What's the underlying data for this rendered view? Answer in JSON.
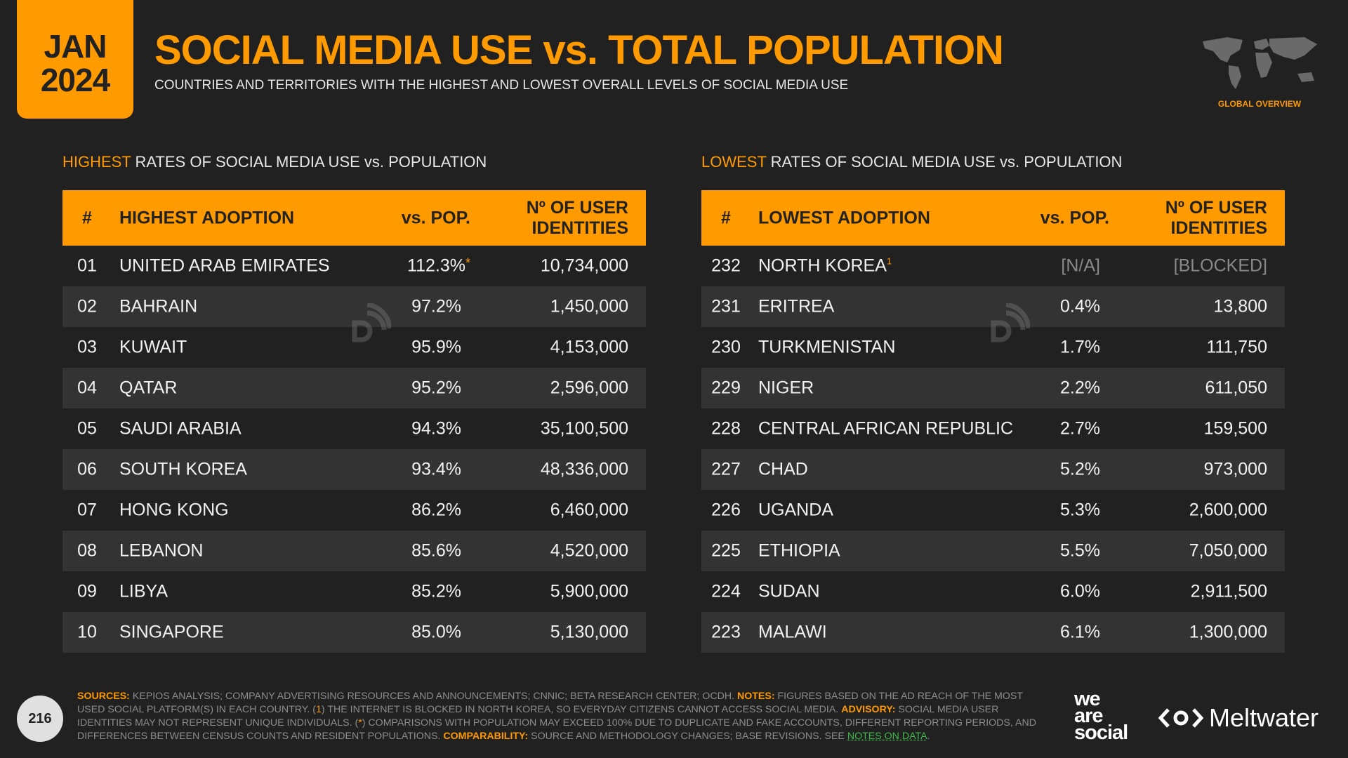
{
  "header": {
    "month": "JAN",
    "year": "2024",
    "title": "SOCIAL MEDIA USE vs. TOTAL POPULATION",
    "subtitle": "COUNTRIES AND TERRITORIES WITH THE HIGHEST AND LOWEST OVERALL LEVELS OF SOCIAL MEDIA USE",
    "section_tag": "GLOBAL OVERVIEW"
  },
  "highest": {
    "heading_hl": "HIGHEST",
    "heading_rest": " RATES OF SOCIAL MEDIA USE vs. POPULATION",
    "columns": [
      "#",
      "HIGHEST ADOPTION",
      "vs. POP.",
      "Nº OF USER",
      "IDENTITIES"
    ],
    "rows": [
      {
        "rank": "01",
        "name": "UNITED ARAB EMIRATES",
        "pop": "112.3%",
        "mark": "*",
        "users": "10,734,000"
      },
      {
        "rank": "02",
        "name": "BAHRAIN",
        "pop": "97.2%",
        "users": "1,450,000"
      },
      {
        "rank": "03",
        "name": "KUWAIT",
        "pop": "95.9%",
        "users": "4,153,000"
      },
      {
        "rank": "04",
        "name": "QATAR",
        "pop": "95.2%",
        "users": "2,596,000"
      },
      {
        "rank": "05",
        "name": "SAUDI ARABIA",
        "pop": "94.3%",
        "users": "35,100,500"
      },
      {
        "rank": "06",
        "name": "SOUTH KOREA",
        "pop": "93.4%",
        "users": "48,336,000"
      },
      {
        "rank": "07",
        "name": "HONG KONG",
        "pop": "86.2%",
        "users": "6,460,000"
      },
      {
        "rank": "08",
        "name": "LEBANON",
        "pop": "85.6%",
        "users": "4,520,000"
      },
      {
        "rank": "09",
        "name": "LIBYA",
        "pop": "85.2%",
        "users": "5,900,000"
      },
      {
        "rank": "10",
        "name": "SINGAPORE",
        "pop": "85.0%",
        "users": "5,130,000"
      }
    ]
  },
  "lowest": {
    "heading_hl": "LOWEST",
    "heading_rest": " RATES OF SOCIAL MEDIA USE vs. POPULATION",
    "columns": [
      "#",
      "LOWEST ADOPTION",
      "vs. POP.",
      "Nº OF USER",
      "IDENTITIES"
    ],
    "rows": [
      {
        "rank": "232",
        "name": "NORTH KOREA",
        "mark": "1",
        "pop": "[N/A]",
        "users": "[BLOCKED]"
      },
      {
        "rank": "231",
        "name": "ERITREA",
        "pop": "0.4%",
        "users": "13,800"
      },
      {
        "rank": "230",
        "name": "TURKMENISTAN",
        "pop": "1.7%",
        "users": "111,750"
      },
      {
        "rank": "229",
        "name": "NIGER",
        "pop": "2.2%",
        "users": "611,050"
      },
      {
        "rank": "228",
        "name": "CENTRAL AFRICAN REPUBLIC",
        "pop": "2.7%",
        "users": "159,500"
      },
      {
        "rank": "227",
        "name": "CHAD",
        "pop": "5.2%",
        "users": "973,000"
      },
      {
        "rank": "226",
        "name": "UGANDA",
        "pop": "5.3%",
        "users": "2,600,000"
      },
      {
        "rank": "225",
        "name": "ETHIOPIA",
        "pop": "5.5%",
        "users": "7,050,000"
      },
      {
        "rank": "224",
        "name": "SUDAN",
        "pop": "6.0%",
        "users": "2,911,500"
      },
      {
        "rank": "223",
        "name": "MALAWI",
        "pop": "6.1%",
        "users": "1,300,000"
      }
    ]
  },
  "footer": {
    "page": "216",
    "sources_label": "SOURCES:",
    "sources": " KEPIOS ANALYSIS; COMPANY ADVERTISING RESOURCES AND ANNOUNCEMENTS; CNNIC; BETA RESEARCH CENTER; OCDH. ",
    "notes_label": "NOTES:",
    "notes_a": " FIGURES BASED ON THE AD REACH OF THE MOST USED SOCIAL PLATFORM(S) IN EACH COUNTRY. (",
    "n1": "1",
    "notes_b": ") THE INTERNET IS BLOCKED IN NORTH KOREA, SO EVERYDAY CITIZENS CANNOT ACCESS SOCIAL MEDIA. ",
    "advisory_label": "ADVISORY:",
    "advisory_a": " SOCIAL MEDIA USER IDENTITIES MAY NOT REPRESENT UNIQUE INDIVIDUALS. (",
    "n2": "*",
    "advisory_b": ") COMPARISONS WITH POPULATION MAY EXCEED 100% DUE TO DUPLICATE AND FAKE ACCOUNTS, DIFFERENT REPORTING PERIODS, AND DIFFERENCES BETWEEN CENSUS COUNTS AND RESIDENT POPULATIONS. ",
    "comparability_label": "COMPARABILITY:",
    "comparability": " SOURCE AND METHODOLOGY CHANGES; BASE REVISIONS. SEE ",
    "link": "NOTES ON DATA",
    "end": "."
  },
  "logos": {
    "was1": "we",
    "was2": "are",
    "was3": "social",
    "meltwater": "Meltwater"
  },
  "colors": {
    "accent": "#FF9A00",
    "background": "#212121",
    "row_alt": "#333333",
    "link": "#3FB84A"
  }
}
